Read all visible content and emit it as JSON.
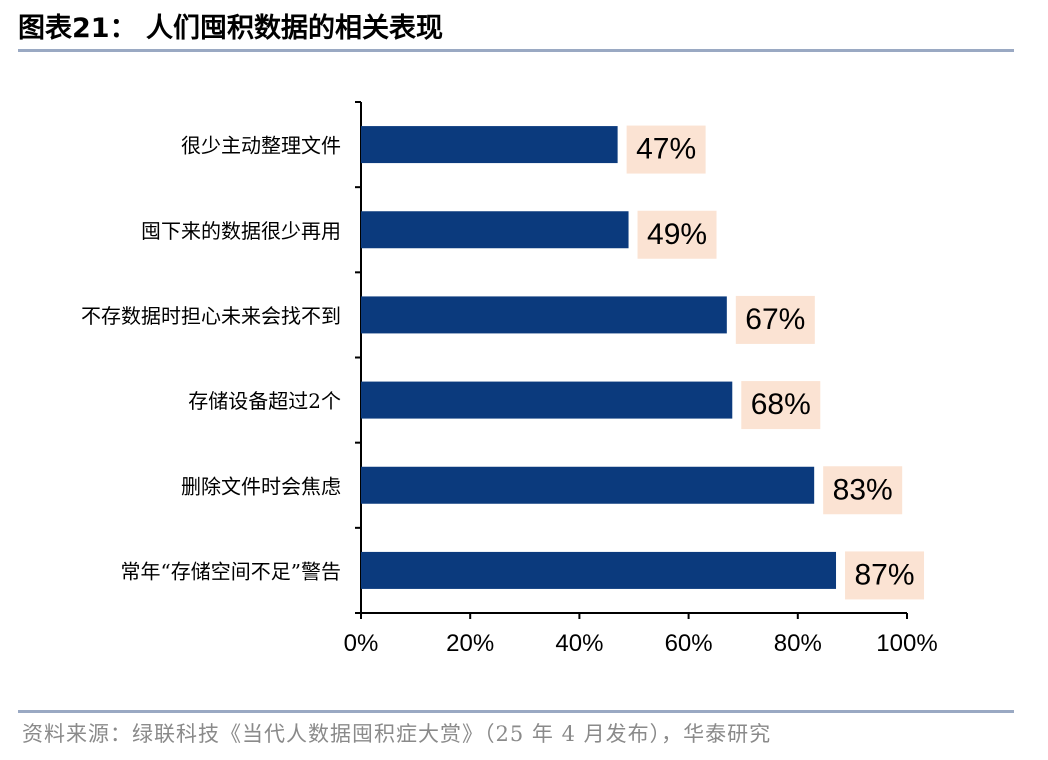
{
  "header": {
    "figure_title": "图表21：  人们囤积数据的相关表现"
  },
  "chart_data": {
    "type": "bar",
    "orientation": "horizontal",
    "categories": [
      "很少主动整理文件",
      "囤下来的数据很少再用",
      "不存数据时担心未来会找不到",
      "存储设备超过2个",
      "删除文件时会焦虑",
      "常年“存储空间不足”警告"
    ],
    "values": [
      47,
      49,
      67,
      68,
      83,
      87
    ],
    "data_labels": [
      "47%",
      "49%",
      "67%",
      "68%",
      "83%",
      "87%"
    ],
    "x_ticks": [
      0,
      20,
      40,
      60,
      80,
      100
    ],
    "x_tick_labels": [
      "0%",
      "20%",
      "40%",
      "60%",
      "80%",
      "100%"
    ],
    "xlim": [
      0,
      100
    ],
    "grid": false,
    "bar_color": "#0b3a7d",
    "label_bg_color": "#fbe3d3"
  },
  "footer": {
    "source": "资料来源：绿联科技《当代人数据囤积症大赏》（25 年 4 月发布），华泰研究"
  }
}
